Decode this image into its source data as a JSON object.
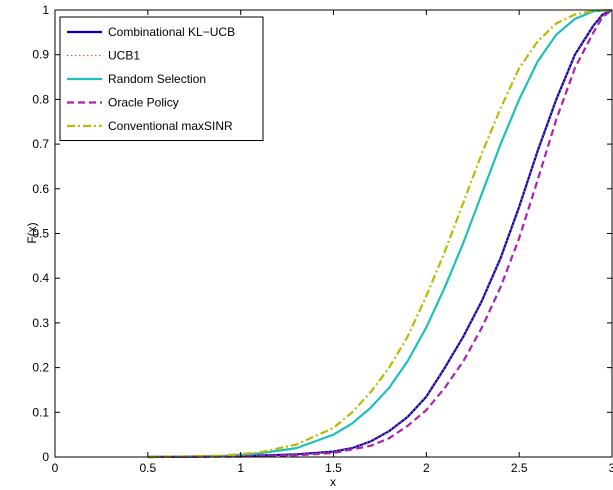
{
  "chart_data": {
    "type": "line",
    "title": "",
    "xlabel": "x",
    "ylabel": "F(x)",
    "xlim": [
      0,
      3
    ],
    "ylim": [
      0,
      1
    ],
    "grid": false,
    "legend_position": "top-left",
    "x_ticks": [
      {
        "value": 0,
        "label": "0"
      },
      {
        "value": 0.5,
        "label": "0.5"
      },
      {
        "value": 1,
        "label": "1"
      },
      {
        "value": 1.5,
        "label": "1.5"
      },
      {
        "value": 2,
        "label": "2"
      },
      {
        "value": 2.5,
        "label": "2.5"
      },
      {
        "value": 3,
        "label": "3"
      }
    ],
    "y_ticks": [
      {
        "value": 0,
        "label": "0"
      },
      {
        "value": 0.1,
        "label": "0.1"
      },
      {
        "value": 0.2,
        "label": "0.2"
      },
      {
        "value": 0.3,
        "label": "0.3"
      },
      {
        "value": 0.4,
        "label": "0.4"
      },
      {
        "value": 0.5,
        "label": "0.5"
      },
      {
        "value": 0.6,
        "label": "0.6"
      },
      {
        "value": 0.7,
        "label": "0.7"
      },
      {
        "value": 0.8,
        "label": "0.8"
      },
      {
        "value": 0.9,
        "label": "0.9"
      },
      {
        "value": 1,
        "label": "1"
      }
    ],
    "series": [
      {
        "name": "Combinational KL−UCB",
        "color": "#0000cc",
        "dash": "solid",
        "x": [
          0.5,
          1.0,
          1.3,
          1.5,
          1.6,
          1.7,
          1.8,
          1.9,
          2.0,
          2.1,
          2.2,
          2.3,
          2.4,
          2.5,
          2.6,
          2.7,
          2.8,
          2.9,
          2.95,
          3.0
        ],
        "y": [
          0.0,
          0.002,
          0.006,
          0.012,
          0.02,
          0.035,
          0.058,
          0.09,
          0.135,
          0.2,
          0.27,
          0.35,
          0.445,
          0.56,
          0.685,
          0.8,
          0.9,
          0.965,
          0.99,
          1.0
        ]
      },
      {
        "name": "UCB1",
        "color": "#d2691e",
        "dash": "dotted",
        "x": [
          0.5,
          1.0,
          1.3,
          1.5,
          1.6,
          1.7,
          1.8,
          1.9,
          2.0,
          2.1,
          2.2,
          2.3,
          2.4,
          2.5,
          2.6,
          2.7,
          2.8,
          2.9,
          2.95,
          3.0
        ],
        "y": [
          0.0,
          0.002,
          0.006,
          0.012,
          0.02,
          0.035,
          0.058,
          0.09,
          0.135,
          0.2,
          0.27,
          0.35,
          0.445,
          0.56,
          0.685,
          0.8,
          0.9,
          0.965,
          0.99,
          1.0
        ]
      },
      {
        "name": "Random Selection",
        "color": "#1fbfbf",
        "dash": "solid",
        "x": [
          0.5,
          0.9,
          1.1,
          1.3,
          1.5,
          1.6,
          1.7,
          1.8,
          1.9,
          2.0,
          2.1,
          2.2,
          2.3,
          2.4,
          2.5,
          2.6,
          2.7,
          2.8,
          2.9,
          3.0
        ],
        "y": [
          0.0,
          0.002,
          0.008,
          0.02,
          0.05,
          0.075,
          0.11,
          0.155,
          0.215,
          0.29,
          0.38,
          0.48,
          0.59,
          0.7,
          0.8,
          0.885,
          0.945,
          0.98,
          0.997,
          1.0
        ]
      },
      {
        "name": "Oracle Policy",
        "color": "#b020b0",
        "dash": "dashed",
        "x": [
          0.5,
          1.0,
          1.3,
          1.5,
          1.7,
          1.8,
          1.9,
          2.0,
          2.1,
          2.2,
          2.3,
          2.4,
          2.5,
          2.6,
          2.7,
          2.8,
          2.9,
          2.95,
          3.0
        ],
        "y": [
          0.0,
          0.001,
          0.004,
          0.009,
          0.025,
          0.042,
          0.07,
          0.105,
          0.155,
          0.215,
          0.29,
          0.38,
          0.49,
          0.62,
          0.755,
          0.87,
          0.95,
          0.985,
          1.0
        ]
      },
      {
        "name": "Conventional maxSINR",
        "color": "#bdb800",
        "dash": "dashdot",
        "x": [
          0.5,
          0.9,
          1.1,
          1.3,
          1.5,
          1.6,
          1.7,
          1.8,
          1.9,
          2.0,
          2.1,
          2.2,
          2.3,
          2.4,
          2.5,
          2.6,
          2.7,
          2.8,
          2.9,
          3.0
        ],
        "y": [
          0.0,
          0.003,
          0.01,
          0.028,
          0.065,
          0.1,
          0.145,
          0.2,
          0.27,
          0.36,
          0.46,
          0.57,
          0.68,
          0.78,
          0.87,
          0.93,
          0.97,
          0.99,
          0.998,
          1.0
        ]
      }
    ]
  }
}
